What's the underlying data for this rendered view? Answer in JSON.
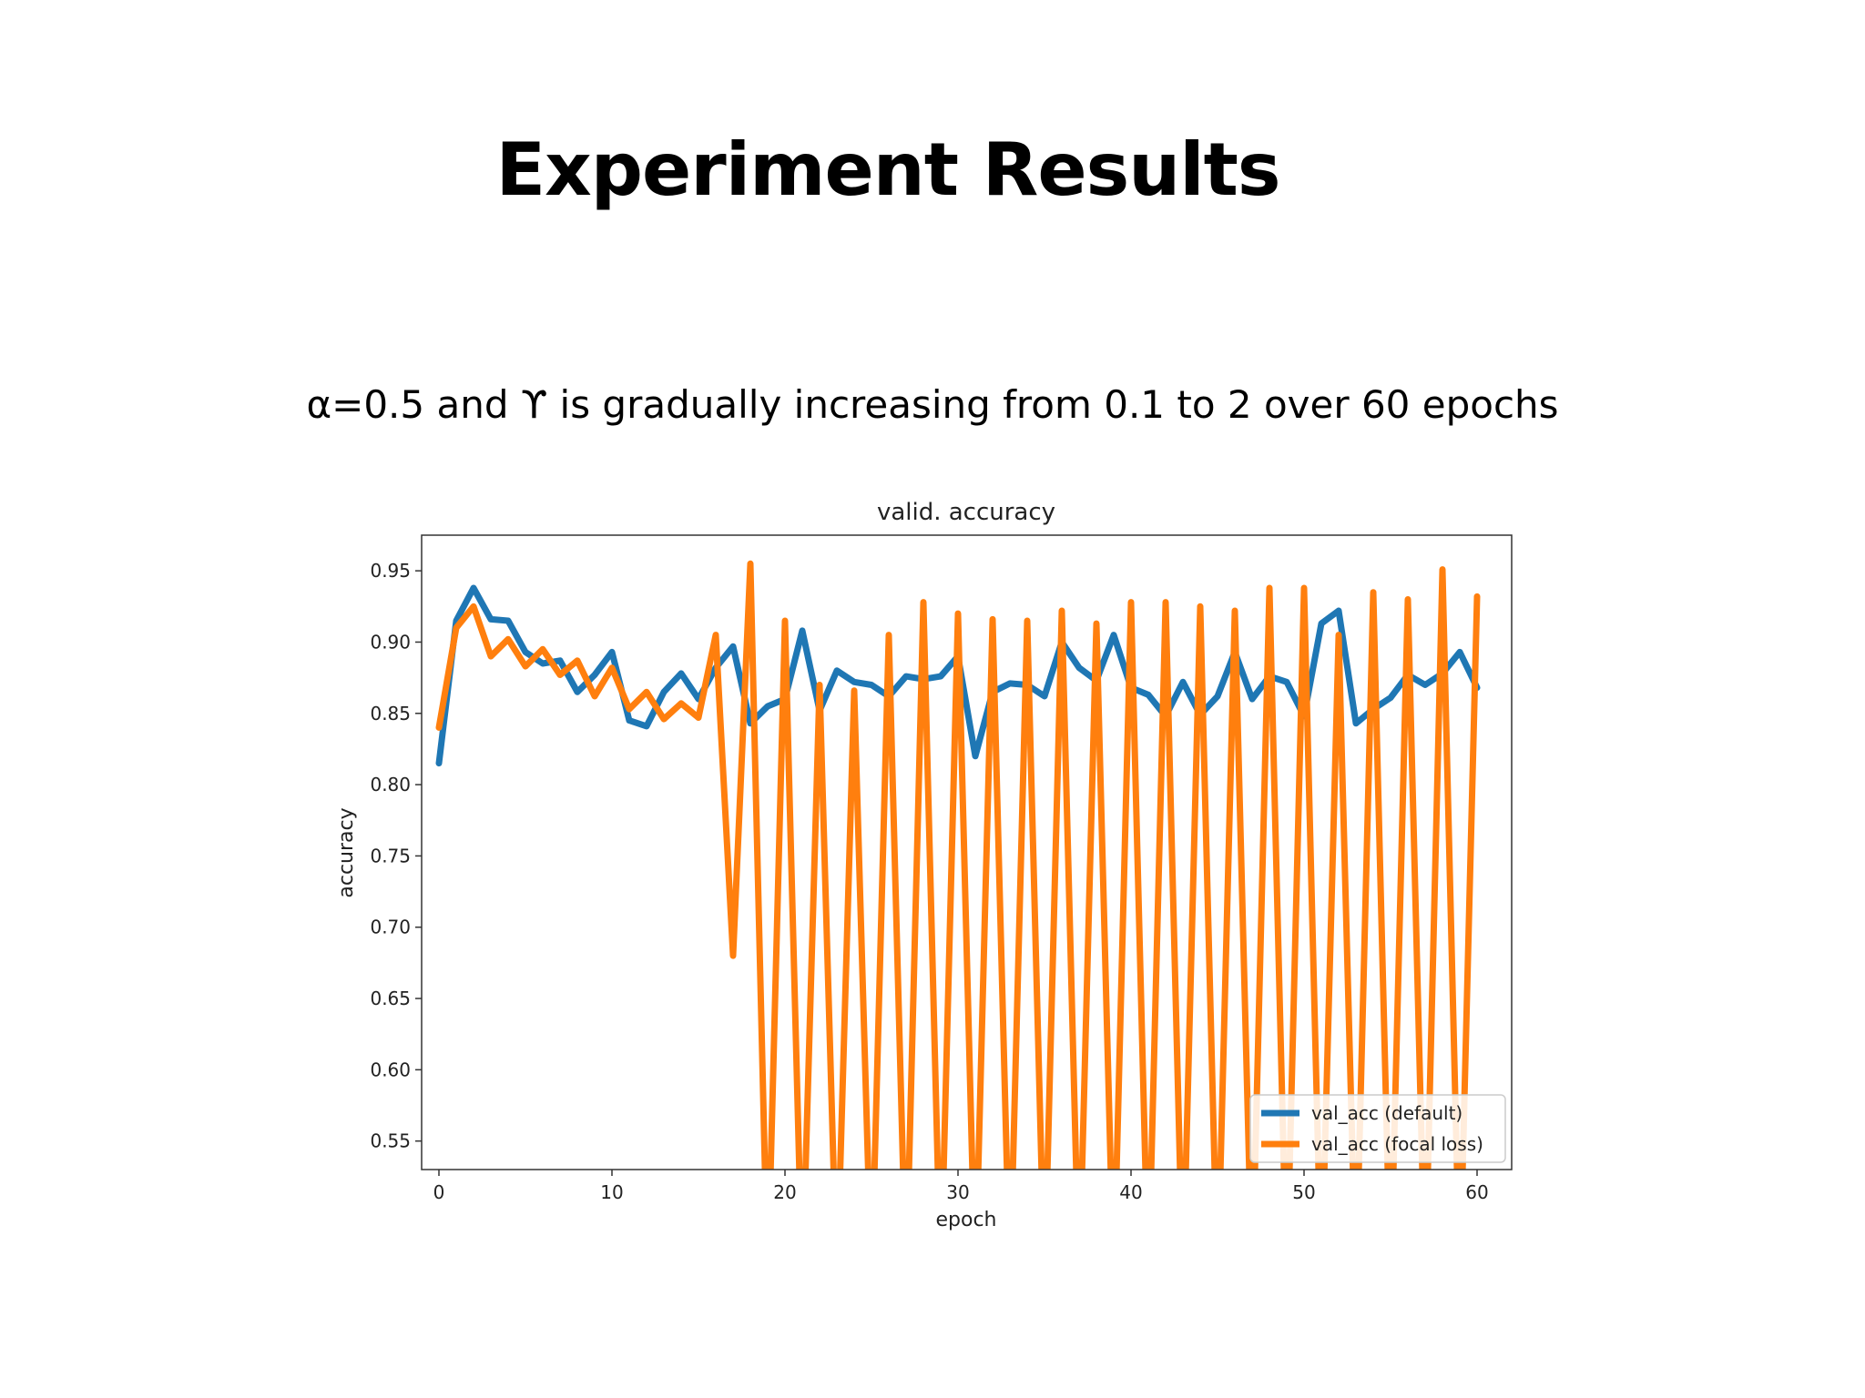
{
  "slide": {
    "title": "Experiment Results",
    "subtitle": "α=0.5 and ϒ is gradually increasing from 0.1 to 2 over 60 epochs"
  },
  "chart_data": {
    "type": "line",
    "title": "valid. accuracy",
    "xlabel": "epoch",
    "ylabel": "accuracy",
    "xlim": [
      -1,
      62
    ],
    "ylim": [
      0.53,
      0.975
    ],
    "xticks": [
      0,
      10,
      20,
      30,
      40,
      50,
      60
    ],
    "yticks": [
      0.55,
      0.6,
      0.65,
      0.7,
      0.75,
      0.8,
      0.85,
      0.9,
      0.95
    ],
    "grid": false,
    "legend": "lower-right",
    "x": [
      0,
      1,
      2,
      3,
      4,
      5,
      6,
      7,
      8,
      9,
      10,
      11,
      12,
      13,
      14,
      15,
      16,
      17,
      18,
      19,
      20,
      21,
      22,
      23,
      24,
      25,
      26,
      27,
      28,
      29,
      30,
      31,
      32,
      33,
      34,
      35,
      36,
      37,
      38,
      39,
      40,
      41,
      42,
      43,
      44,
      45,
      46,
      47,
      48,
      49,
      50,
      51,
      52,
      53,
      54,
      55,
      56,
      57,
      58,
      59,
      60
    ],
    "series": [
      {
        "name": "val_acc (default)",
        "color": "#1f77b4",
        "values": [
          0.815,
          0.915,
          0.938,
          0.916,
          0.915,
          0.893,
          0.885,
          0.887,
          0.865,
          0.877,
          0.893,
          0.845,
          0.841,
          0.865,
          0.878,
          0.86,
          0.882,
          0.897,
          0.843,
          0.855,
          0.86,
          0.908,
          0.852,
          0.88,
          0.872,
          0.87,
          0.862,
          0.876,
          0.874,
          0.876,
          0.89,
          0.82,
          0.865,
          0.871,
          0.87,
          0.862,
          0.9,
          0.882,
          0.873,
          0.905,
          0.868,
          0.863,
          0.848,
          0.872,
          0.849,
          0.862,
          0.893,
          0.86,
          0.876,
          0.872,
          0.848,
          0.913,
          0.922,
          0.843,
          0.853,
          0.861,
          0.877,
          0.87,
          0.878,
          0.893,
          0.868
        ]
      },
      {
        "name": "val_acc (focal loss)",
        "color": "#ff7f0e",
        "values": [
          0.84,
          0.91,
          0.925,
          0.89,
          0.902,
          0.883,
          0.895,
          0.877,
          0.887,
          0.862,
          0.882,
          0.853,
          0.865,
          0.846,
          0.857,
          0.847,
          0.905,
          0.68,
          0.955,
          0.45,
          0.915,
          0.45,
          0.87,
          0.45,
          0.866,
          0.45,
          0.905,
          0.45,
          0.928,
          0.45,
          0.92,
          0.45,
          0.916,
          0.45,
          0.915,
          0.45,
          0.922,
          0.45,
          0.913,
          0.45,
          0.928,
          0.45,
          0.928,
          0.45,
          0.925,
          0.45,
          0.922,
          0.45,
          0.938,
          0.45,
          0.938,
          0.45,
          0.905,
          0.45,
          0.935,
          0.45,
          0.93,
          0.45,
          0.951,
          0.45,
          0.932
        ]
      }
    ]
  }
}
